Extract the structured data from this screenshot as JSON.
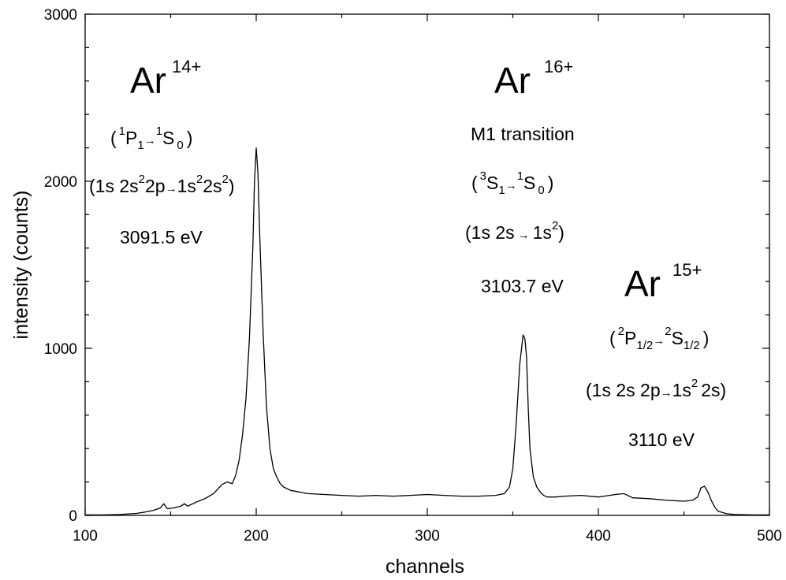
{
  "chart_data": {
    "type": "line",
    "xlabel": "channels",
    "ylabel": "intensity (counts)",
    "xlim": [
      100,
      500
    ],
    "ylim": [
      0,
      3000
    ],
    "x_ticks": [
      100,
      200,
      300,
      400,
      500
    ],
    "y_ticks": [
      0,
      1000,
      2000,
      3000
    ],
    "x_tick_labels": [
      "100",
      "200",
      "300",
      "400",
      "500"
    ],
    "y_tick_labels": [
      "0",
      "1000",
      "2000",
      "3000"
    ],
    "grid": false,
    "legend": "none",
    "series": [
      {
        "x": [
          100,
          110,
          120,
          130,
          135,
          140,
          144,
          146,
          148,
          152,
          156,
          158,
          160,
          165,
          170,
          175,
          180,
          183,
          186,
          188,
          190,
          192,
          194,
          196,
          198,
          199,
          200,
          201,
          202,
          204,
          206,
          208,
          210,
          212,
          214,
          216,
          220,
          225,
          230,
          240,
          250,
          260,
          270,
          280,
          290,
          300,
          310,
          320,
          330,
          340,
          345,
          348,
          350,
          352,
          354,
          356,
          357,
          358,
          359,
          360,
          362,
          364,
          366,
          368,
          370,
          375,
          380,
          390,
          400,
          410,
          415,
          420,
          430,
          440,
          450,
          455,
          458,
          460,
          462,
          464,
          466,
          468,
          470,
          475,
          480,
          490,
          500
        ],
        "y": [
          3,
          3,
          5,
          12,
          20,
          30,
          45,
          70,
          40,
          45,
          55,
          70,
          55,
          80,
          100,
          130,
          185,
          200,
          190,
          240,
          330,
          480,
          700,
          1050,
          1600,
          2000,
          2200,
          2050,
          1700,
          1100,
          650,
          400,
          280,
          230,
          190,
          170,
          150,
          140,
          130,
          125,
          120,
          115,
          120,
          115,
          120,
          125,
          120,
          115,
          115,
          120,
          130,
          170,
          280,
          550,
          900,
          1080,
          1060,
          950,
          650,
          400,
          230,
          170,
          140,
          120,
          110,
          110,
          115,
          120,
          110,
          125,
          130,
          105,
          100,
          90,
          85,
          90,
          110,
          165,
          175,
          140,
          90,
          50,
          25,
          10,
          5,
          3,
          3
        ]
      }
    ],
    "annotations": {
      "ar14": {
        "ion": "Ar",
        "charge": "14+",
        "transition": [
          "(",
          "1",
          "P",
          "1",
          "→",
          "1",
          "S",
          "0",
          ")"
        ],
        "config": [
          "(1s 2s",
          "2",
          "2p",
          "→",
          "1s",
          "2",
          "2s",
          "2",
          ")"
        ],
        "energy": "3091.5 eV"
      },
      "ar16": {
        "ion": "Ar",
        "charge": "16+",
        "type": "M1 transition",
        "transition": [
          "(",
          "3",
          "S",
          "1",
          "→",
          "1",
          "S",
          "0",
          ")"
        ],
        "config": [
          "(1s 2s",
          "→",
          "1s",
          "2",
          ")"
        ],
        "energy": "3103.7 eV"
      },
      "ar15": {
        "ion": "Ar",
        "charge": "15+",
        "transition": [
          "(",
          "2",
          "P",
          "1/2",
          "→",
          "2",
          "S",
          "1/2",
          ")"
        ],
        "config": [
          "(1s 2s 2p",
          "→",
          "1s",
          "2",
          "2s)"
        ],
        "energy": "3110 eV"
      }
    }
  }
}
